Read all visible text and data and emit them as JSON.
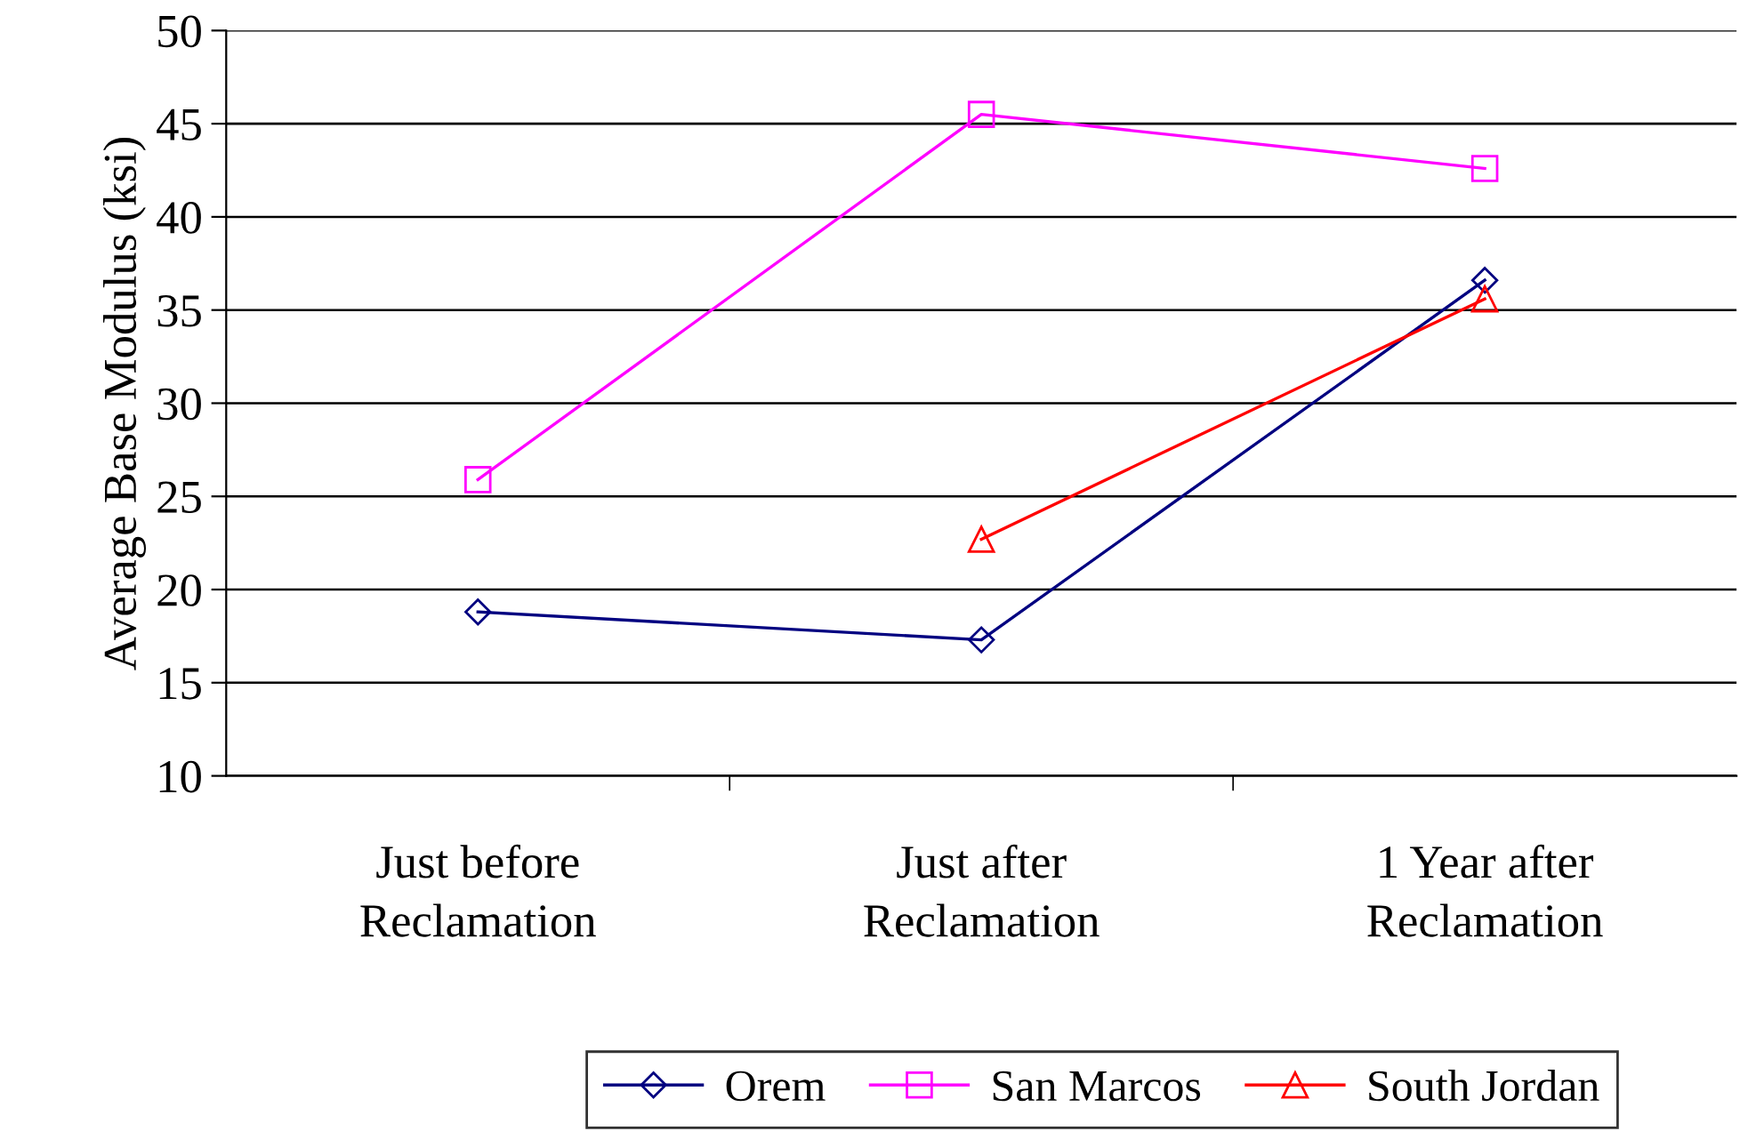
{
  "chart_data": {
    "type": "line",
    "ylabel": "Average Base Modulus (ksi)",
    "categories": [
      "Just before\nReclamation",
      "Just after\nReclamation",
      "1 Year after\nReclamation"
    ],
    "series": [
      {
        "name": "Orem",
        "color": "#000080",
        "marker": "diamond",
        "values": [
          18.8,
          17.3,
          36.6
        ]
      },
      {
        "name": "San Marcos",
        "color": "#ff00ff",
        "marker": "square",
        "values": [
          25.9,
          45.5,
          42.6
        ]
      },
      {
        "name": "South Jordan",
        "color": "#ff0000",
        "marker": "triangle",
        "values": [
          null,
          22.7,
          35.6
        ]
      }
    ],
    "ylim": [
      10,
      50
    ],
    "yticks": [
      10,
      15,
      20,
      25,
      30,
      35,
      40,
      45,
      50
    ],
    "grid": "y",
    "legend": "bottom",
    "line_style": "solid"
  }
}
